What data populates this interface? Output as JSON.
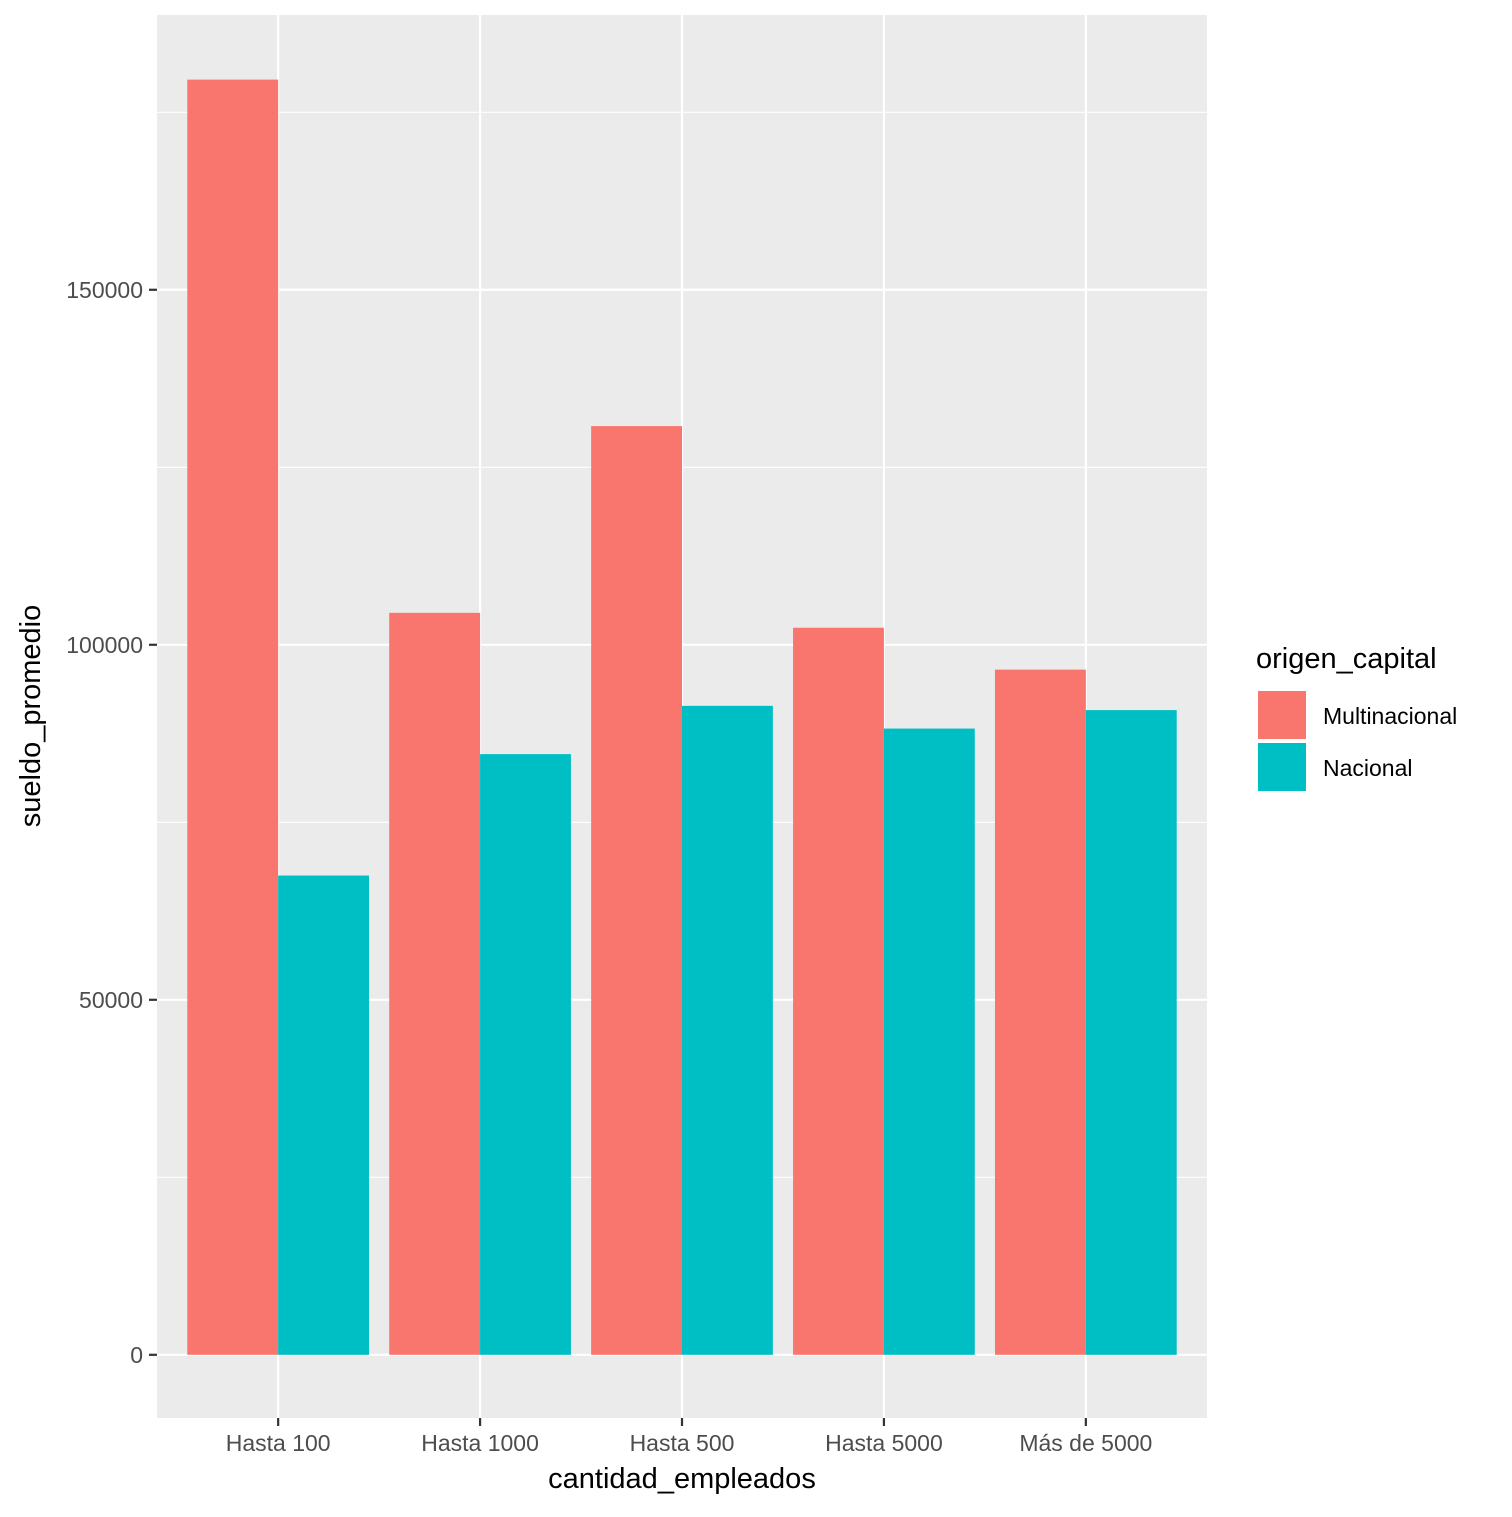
{
  "chart_data": {
    "type": "bar",
    "title": "",
    "xlabel": "cantidad_empleados",
    "ylabel": "sueldo_promedio",
    "categories": [
      "Hasta 100",
      "Hasta 1000",
      "Hasta 500",
      "Hasta 5000",
      "Más de 5000"
    ],
    "series": [
      {
        "name": "Multinacional",
        "color": "#F8766D",
        "values": [
          179600,
          104500,
          130800,
          102400,
          96500
        ]
      },
      {
        "name": "Nacional",
        "color": "#00BFC4",
        "values": [
          67500,
          84600,
          91400,
          88200,
          90800
        ]
      }
    ],
    "ylim": [
      -8900,
      188700
    ],
    "yticks": [
      0,
      50000,
      100000,
      150000
    ],
    "ytick_labels": [
      "0",
      "50000",
      "100000",
      "150000"
    ],
    "grid": true,
    "legend": {
      "title": "origen_capital",
      "position": "right"
    }
  }
}
